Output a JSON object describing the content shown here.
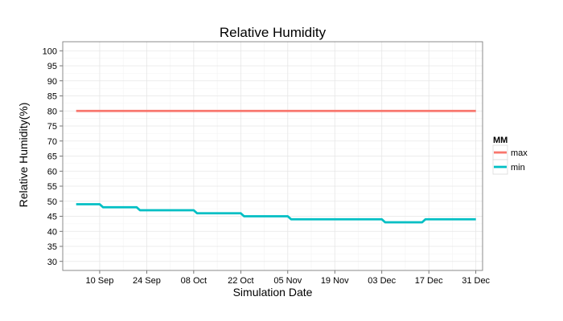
{
  "chart_data": {
    "type": "line",
    "title": "Relative Humidity",
    "xlabel": "Simulation Date",
    "ylabel": "Relative Humidity(%)",
    "ylim": [
      27,
      103
    ],
    "xlim": [
      "2013-08-30",
      "2014-01-02"
    ],
    "yticks": [
      30,
      35,
      40,
      45,
      50,
      55,
      60,
      65,
      70,
      75,
      80,
      85,
      90,
      95,
      100
    ],
    "xticks": [
      {
        "date": "2013-09-10",
        "label": "10 Sep"
      },
      {
        "date": "2013-09-24",
        "label": "24 Sep"
      },
      {
        "date": "2013-10-08",
        "label": "08 Oct"
      },
      {
        "date": "2013-10-22",
        "label": "22 Oct"
      },
      {
        "date": "2013-11-05",
        "label": "05 Nov"
      },
      {
        "date": "2013-11-19",
        "label": "19 Nov"
      },
      {
        "date": "2013-12-03",
        "label": "03 Dec"
      },
      {
        "date": "2013-12-17",
        "label": "17 Dec"
      },
      {
        "date": "2013-12-31",
        "label": "31 Dec"
      }
    ],
    "grid": true,
    "legend": {
      "title": "MM",
      "placement": "right"
    },
    "series": [
      {
        "name": "max",
        "color": "#F8766D",
        "x": [
          "2013-09-03",
          "2013-12-31"
        ],
        "y": [
          80,
          80
        ]
      },
      {
        "name": "min",
        "color": "#00BFC4",
        "x": [
          "2013-09-03",
          "2013-09-10",
          "2013-09-11",
          "2013-09-21",
          "2013-09-22",
          "2013-10-08",
          "2013-10-09",
          "2013-10-22",
          "2013-10-23",
          "2013-11-05",
          "2013-11-06",
          "2013-12-03",
          "2013-12-04",
          "2013-12-15",
          "2013-12-16",
          "2013-12-31"
        ],
        "y": [
          49,
          49,
          48,
          48,
          47,
          47,
          46,
          46,
          45,
          45,
          44,
          44,
          43,
          43,
          44,
          44
        ]
      }
    ]
  }
}
